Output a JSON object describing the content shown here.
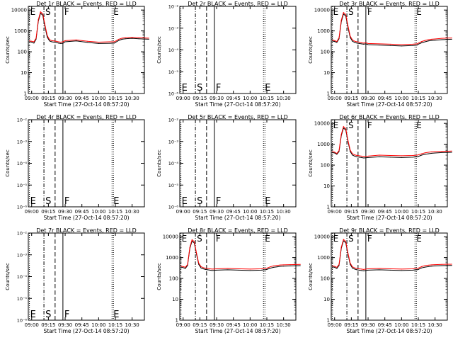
{
  "common": {
    "ylabel": "Counts/sec",
    "xlabel": "Start Time (27-Oct-14 08:57:20)",
    "x_ticks": [
      "09:00",
      "09:15",
      "09:30",
      "09:45",
      "10:00",
      "10:15",
      "10:30"
    ],
    "y_ticks_log": [
      "1",
      "10",
      "100",
      "1000",
      "10000"
    ],
    "y_ticks_empty": [
      "10⁻²",
      "10⁻³",
      "10⁻⁴",
      "10⁻⁵",
      "10⁻⁶"
    ],
    "marker_labels": {
      "e1": "E",
      "s": "S",
      "f": "F",
      "e2": "E"
    },
    "colors": {
      "events": "#000000",
      "lld": "#ff0000"
    }
  },
  "chart_data": [
    {
      "title": "Det 1r BLACK = Events, RED = LLD",
      "type": "line",
      "empty": false,
      "label_pos": "top",
      "ylim": [
        1,
        15000
      ],
      "y_scale": "log",
      "series": [
        {
          "name": "Events",
          "x": [
            "08:58",
            "09:00",
            "09:02",
            "09:04",
            "09:06",
            "09:08",
            "09:10",
            "09:12",
            "09:14",
            "09:16",
            "09:18",
            "09:20",
            "09:22",
            "09:24",
            "09:26",
            "09:28",
            "09:30",
            "09:40",
            "09:50",
            "10:00",
            "10:10",
            "10:14",
            "10:15",
            "10:18",
            "10:21",
            "10:24",
            "10:27",
            "10:30",
            "10:36",
            "10:45"
          ],
          "y": [
            300,
            290,
            260,
            400,
            3000,
            7000,
            5500,
            1500,
            500,
            330,
            300,
            290,
            280,
            260,
            250,
            255,
            300,
            330,
            280,
            250,
            255,
            260,
            280,
            350,
            400,
            420,
            430,
            440,
            420,
            400
          ]
        },
        {
          "name": "LLD",
          "x": [
            "08:58",
            "09:00",
            "09:02",
            "09:04",
            "09:06",
            "09:08",
            "09:10",
            "09:12",
            "09:14",
            "09:16",
            "09:18",
            "09:20",
            "09:22",
            "09:24",
            "09:26",
            "09:28",
            "09:30",
            "09:40",
            "09:50",
            "10:00",
            "10:10",
            "10:14",
            "10:15",
            "10:18",
            "10:21",
            "10:24",
            "10:27",
            "10:30",
            "10:36",
            "10:45"
          ],
          "y": [
            330,
            320,
            300,
            450,
            3500,
            8200,
            6500,
            1800,
            600,
            380,
            340,
            330,
            320,
            300,
            290,
            300,
            340,
            370,
            320,
            290,
            300,
            300,
            320,
            400,
            450,
            470,
            480,
            490,
            470,
            450
          ]
        }
      ]
    },
    {
      "title": "Det 2r BLACK = Events, RED = LLD",
      "type": "line",
      "empty": true,
      "label_pos": "bottom",
      "ylim": [
        1e-06,
        0.01
      ],
      "y_scale": "log",
      "series": []
    },
    {
      "title": "Det 3r BLACK = Events, RED = LLD",
      "type": "line",
      "empty": false,
      "label_pos": "top",
      "ylim": [
        1,
        15000
      ],
      "y_scale": "log",
      "series": [
        {
          "name": "Events",
          "x": [
            "08:58",
            "09:00",
            "09:02",
            "09:04",
            "09:06",
            "09:08",
            "09:10",
            "09:12",
            "09:14",
            "09:16",
            "09:18",
            "09:20",
            "09:22",
            "09:24",
            "09:26",
            "09:28",
            "09:30",
            "09:40",
            "09:50",
            "10:00",
            "10:10",
            "10:14",
            "10:15",
            "10:18",
            "10:21",
            "10:24",
            "10:27",
            "10:30",
            "10:36",
            "10:45"
          ],
          "y": [
            330,
            310,
            280,
            420,
            2800,
            6500,
            5200,
            1400,
            480,
            320,
            280,
            260,
            250,
            240,
            230,
            240,
            220,
            210,
            200,
            190,
            200,
            210,
            230,
            270,
            300,
            330,
            350,
            360,
            380,
            400
          ]
        },
        {
          "name": "LLD",
          "x": [
            "08:58",
            "09:00",
            "09:02",
            "09:04",
            "09:06",
            "09:08",
            "09:10",
            "09:12",
            "09:14",
            "09:16",
            "09:18",
            "09:20",
            "09:22",
            "09:24",
            "09:26",
            "09:28",
            "09:30",
            "09:40",
            "09:50",
            "10:00",
            "10:10",
            "10:14",
            "10:15",
            "10:18",
            "10:21",
            "10:24",
            "10:27",
            "10:30",
            "10:36",
            "10:45"
          ],
          "y": [
            360,
            340,
            310,
            470,
            3300,
            7600,
            6100,
            1700,
            560,
            370,
            320,
            300,
            290,
            270,
            260,
            270,
            250,
            240,
            230,
            220,
            230,
            240,
            260,
            310,
            350,
            380,
            400,
            410,
            440,
            460
          ]
        }
      ]
    },
    {
      "title": "Det 4r BLACK = Events, RED = LLD",
      "type": "line",
      "empty": true,
      "label_pos": "bottom",
      "ylim": [
        1e-06,
        0.01
      ],
      "y_scale": "log",
      "series": []
    },
    {
      "title": "Det 5r BLACK = Events, RED = LLD",
      "type": "line",
      "empty": true,
      "label_pos": "bottom",
      "ylim": [
        1e-06,
        0.01
      ],
      "y_scale": "log",
      "series": []
    },
    {
      "title": "Det 6r BLACK = Events, RED = LLD",
      "type": "line",
      "empty": false,
      "label_pos": "top",
      "ylim": [
        1,
        15000
      ],
      "y_scale": "log",
      "series": [
        {
          "name": "Events",
          "x": [
            "08:58",
            "09:00",
            "09:02",
            "09:04",
            "09:06",
            "09:08",
            "09:10",
            "09:12",
            "09:14",
            "09:16",
            "09:18",
            "09:20",
            "09:22",
            "09:24",
            "09:26",
            "09:28",
            "09:30",
            "09:40",
            "09:50",
            "10:00",
            "10:10",
            "10:14",
            "10:15",
            "10:18",
            "10:21",
            "10:24",
            "10:27",
            "10:30",
            "10:36",
            "10:45"
          ],
          "y": [
            400,
            380,
            330,
            450,
            2600,
            6000,
            4800,
            1300,
            450,
            300,
            270,
            250,
            240,
            230,
            220,
            225,
            230,
            250,
            240,
            230,
            240,
            250,
            260,
            300,
            330,
            350,
            370,
            380,
            400,
            410
          ]
        },
        {
          "name": "LLD",
          "x": [
            "08:58",
            "09:00",
            "09:02",
            "09:04",
            "09:06",
            "09:08",
            "09:10",
            "09:12",
            "09:14",
            "09:16",
            "09:18",
            "09:20",
            "09:22",
            "09:24",
            "09:26",
            "09:28",
            "09:30",
            "09:40",
            "09:50",
            "10:00",
            "10:10",
            "10:14",
            "10:15",
            "10:18",
            "10:21",
            "10:24",
            "10:27",
            "10:30",
            "10:36",
            "10:45"
          ],
          "y": [
            440,
            420,
            360,
            500,
            3000,
            7000,
            5600,
            1500,
            520,
            350,
            310,
            290,
            280,
            270,
            260,
            265,
            270,
            300,
            290,
            280,
            290,
            300,
            310,
            350,
            390,
            410,
            430,
            440,
            460,
            470
          ]
        }
      ]
    },
    {
      "title": "Det 7r BLACK = Events, RED = LLD",
      "type": "line",
      "empty": true,
      "label_pos": "bottom",
      "ylim": [
        1e-06,
        0.01
      ],
      "y_scale": "log",
      "series": []
    },
    {
      "title": "Det 8r BLACK = Events, RED = LLD",
      "type": "line",
      "empty": false,
      "label_pos": "top",
      "ylim": [
        1,
        15000
      ],
      "y_scale": "log",
      "series": [
        {
          "name": "Events",
          "x": [
            "08:58",
            "09:00",
            "09:02",
            "09:04",
            "09:06",
            "09:08",
            "09:10",
            "09:12",
            "09:14",
            "09:16",
            "09:18",
            "09:20",
            "09:22",
            "09:24",
            "09:26",
            "09:28",
            "09:30",
            "09:40",
            "09:50",
            "10:00",
            "10:10",
            "10:14",
            "10:15",
            "10:18",
            "10:21",
            "10:24",
            "10:27",
            "10:30",
            "10:36",
            "10:45"
          ],
          "y": [
            350,
            330,
            300,
            420,
            2700,
            6200,
            5000,
            1400,
            470,
            320,
            290,
            270,
            260,
            250,
            240,
            245,
            250,
            260,
            250,
            240,
            250,
            260,
            270,
            310,
            340,
            360,
            380,
            390,
            400,
            410
          ]
        },
        {
          "name": "LLD",
          "x": [
            "08:58",
            "09:00",
            "09:02",
            "09:04",
            "09:06",
            "09:08",
            "09:10",
            "09:12",
            "09:14",
            "09:16",
            "09:18",
            "09:20",
            "09:22",
            "09:24",
            "09:26",
            "09:28",
            "09:30",
            "09:40",
            "09:50",
            "10:00",
            "10:10",
            "10:14",
            "10:15",
            "10:18",
            "10:21",
            "10:24",
            "10:27",
            "10:30",
            "10:36",
            "10:45"
          ],
          "y": [
            390,
            370,
            340,
            470,
            3100,
            7200,
            5800,
            1600,
            540,
            370,
            330,
            310,
            300,
            290,
            280,
            285,
            290,
            300,
            290,
            280,
            290,
            300,
            310,
            360,
            400,
            420,
            440,
            450,
            460,
            470
          ]
        }
      ]
    },
    {
      "title": "Det 9r BLACK = Events, RED = LLD",
      "type": "line",
      "empty": false,
      "label_pos": "top",
      "ylim": [
        1,
        15000
      ],
      "y_scale": "log",
      "series": [
        {
          "name": "Events",
          "x": [
            "08:58",
            "09:00",
            "09:02",
            "09:04",
            "09:06",
            "09:08",
            "09:10",
            "09:12",
            "09:14",
            "09:16",
            "09:18",
            "09:20",
            "09:22",
            "09:24",
            "09:26",
            "09:28",
            "09:30",
            "09:40",
            "09:50",
            "10:00",
            "10:10",
            "10:14",
            "10:15",
            "10:18",
            "10:21",
            "10:24",
            "10:27",
            "10:30",
            "10:36",
            "10:45"
          ],
          "y": [
            360,
            340,
            300,
            420,
            2800,
            6400,
            5100,
            1400,
            470,
            310,
            280,
            260,
            250,
            240,
            230,
            240,
            250,
            260,
            250,
            240,
            250,
            260,
            270,
            320,
            350,
            370,
            390,
            400,
            410,
            420
          ]
        },
        {
          "name": "LLD",
          "x": [
            "08:58",
            "09:00",
            "09:02",
            "09:04",
            "09:06",
            "09:08",
            "09:10",
            "09:12",
            "09:14",
            "09:16",
            "09:18",
            "09:20",
            "09:22",
            "09:24",
            "09:26",
            "09:28",
            "09:30",
            "09:40",
            "09:50",
            "10:00",
            "10:10",
            "10:14",
            "10:15",
            "10:18",
            "10:21",
            "10:24",
            "10:27",
            "10:30",
            "10:36",
            "10:45"
          ],
          "y": [
            400,
            380,
            340,
            470,
            3200,
            7400,
            5900,
            1600,
            540,
            360,
            320,
            300,
            290,
            280,
            270,
            280,
            290,
            300,
            290,
            280,
            290,
            300,
            310,
            370,
            410,
            430,
            450,
            460,
            470,
            480
          ]
        }
      ]
    }
  ]
}
